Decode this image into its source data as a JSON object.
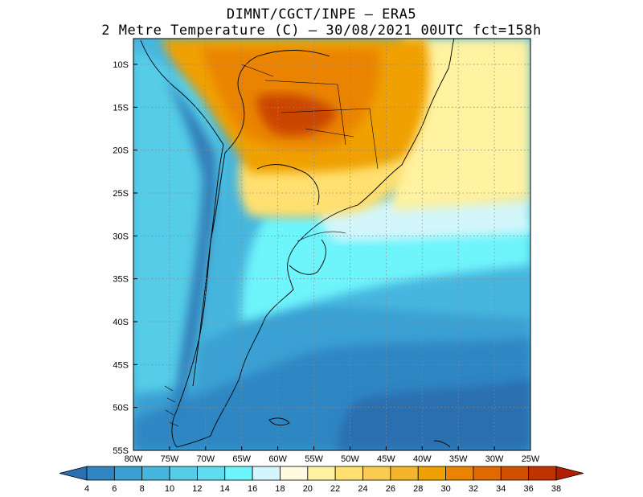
{
  "title_line1": "DIMNT/CGCT/INPE –  ERA5",
  "title_line2": "2 Metre Temperature (C) –  30/08/2021 00UTC fct=158h",
  "map": {
    "lon_range": [
      -80,
      -25
    ],
    "lat_range": [
      -55,
      -7
    ],
    "grid_lon_step": 5,
    "grid_lat_step": 5
  },
  "x_ticks": [
    {
      "lon": -80,
      "label": "80W"
    },
    {
      "lon": -75,
      "label": "75W"
    },
    {
      "lon": -70,
      "label": "70W"
    },
    {
      "lon": -65,
      "label": "65W"
    },
    {
      "lon": -60,
      "label": "60W"
    },
    {
      "lon": -55,
      "label": "55W"
    },
    {
      "lon": -50,
      "label": "50W"
    },
    {
      "lon": -45,
      "label": "45W"
    },
    {
      "lon": -40,
      "label": "40W"
    },
    {
      "lon": -35,
      "label": "35W"
    },
    {
      "lon": -30,
      "label": "30W"
    },
    {
      "lon": -25,
      "label": "25W"
    }
  ],
  "y_ticks": [
    {
      "lat": -10,
      "label": "10S"
    },
    {
      "lat": -15,
      "label": "15S"
    },
    {
      "lat": -20,
      "label": "20S"
    },
    {
      "lat": -25,
      "label": "25S"
    },
    {
      "lat": -30,
      "label": "30S"
    },
    {
      "lat": -35,
      "label": "35S"
    },
    {
      "lat": -40,
      "label": "40S"
    },
    {
      "lat": -45,
      "label": "45S"
    },
    {
      "lat": -50,
      "label": "50S"
    },
    {
      "lat": -55,
      "label": "55S"
    }
  ],
  "colorbar": {
    "labels": [
      "4",
      "6",
      "8",
      "10",
      "12",
      "14",
      "16",
      "18",
      "20",
      "22",
      "24",
      "26",
      "28",
      "30",
      "32",
      "34",
      "36",
      "38"
    ],
    "colors": [
      "#2a6fb0",
      "#2f86c3",
      "#3aa0d3",
      "#47b6de",
      "#55cde8",
      "#60dcf0",
      "#6ef4fb",
      "#d2f6fb",
      "#fffae0",
      "#fff2a0",
      "#ffe070",
      "#fbca50",
      "#f5b42c",
      "#f0a000",
      "#ea8400",
      "#e06a00",
      "#d05000",
      "#c03200",
      "#b02000"
    ]
  },
  "temperature_regions": [
    {
      "id": "ocean-south-deep",
      "temp_c": 5,
      "color": "#2a6fb0"
    },
    {
      "id": "ocean-south-mid",
      "temp_c": 7,
      "color": "#2f86c3"
    },
    {
      "id": "ocean-mid",
      "temp_c": 9,
      "color": "#3aa0d3"
    },
    {
      "id": "ocean-upper-mid",
      "temp_c": 11,
      "color": "#47b6de"
    },
    {
      "id": "pacific-coast",
      "temp_c": 13,
      "color": "#55cde8"
    },
    {
      "id": "atlantic-30s",
      "temp_c": 16,
      "color": "#6ef4fb"
    },
    {
      "id": "atlantic-27s",
      "temp_c": 19,
      "color": "#d2f6fb"
    },
    {
      "id": "atlantic-tropical",
      "temp_c": 23,
      "color": "#fff2a0"
    },
    {
      "id": "south-brazil",
      "temp_c": 25,
      "color": "#ffe070"
    },
    {
      "id": "central-brazil",
      "temp_c": 31,
      "color": "#ea8400"
    },
    {
      "id": "mato-grosso-hot",
      "temp_c": 35,
      "color": "#c03200"
    },
    {
      "id": "andes-cold",
      "temp_c": 3,
      "color": "#2a6fb0"
    }
  ]
}
